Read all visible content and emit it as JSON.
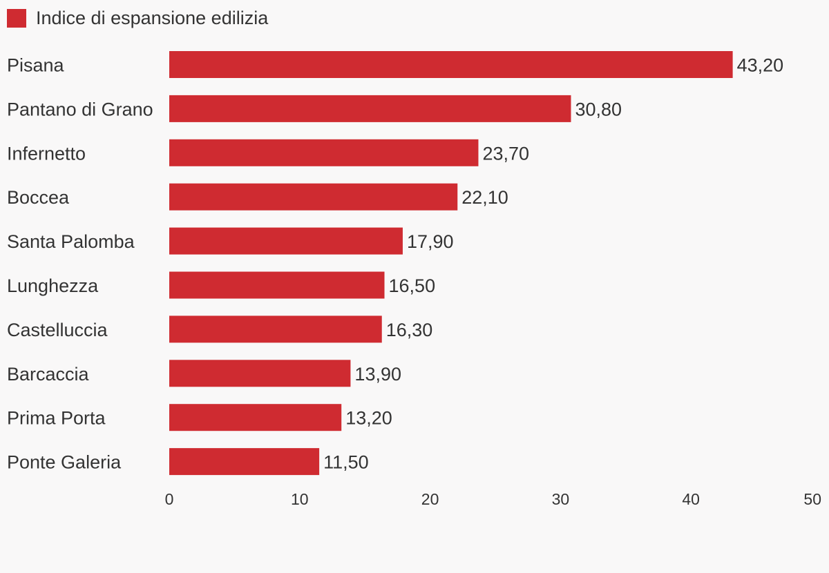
{
  "chart_data": {
    "type": "bar",
    "orientation": "horizontal",
    "categories": [
      "Pisana",
      "Pantano di Grano",
      "Infernetto",
      "Boccea",
      "Santa Palomba",
      "Lunghezza",
      "Castelluccia",
      "Barcaccia",
      "Prima Porta",
      "Ponte Galeria"
    ],
    "series": [
      {
        "name": "Indice di espansione edilizia",
        "color": "#cf2b31",
        "values": [
          43.2,
          30.8,
          23.7,
          22.1,
          17.9,
          16.5,
          16.3,
          13.9,
          13.2,
          11.5
        ],
        "value_labels": [
          "43,20",
          "30,80",
          "23,70",
          "22,10",
          "17,90",
          "16,50",
          "16,30",
          "13,90",
          "13,20",
          "11,50"
        ]
      }
    ],
    "xlim": [
      0,
      50
    ],
    "xticks": [
      0,
      10,
      20,
      30,
      40,
      50
    ],
    "xticklabels": [
      "0",
      "10",
      "20",
      "30",
      "40",
      "50"
    ],
    "grid": false,
    "legend_position": "top-left"
  }
}
